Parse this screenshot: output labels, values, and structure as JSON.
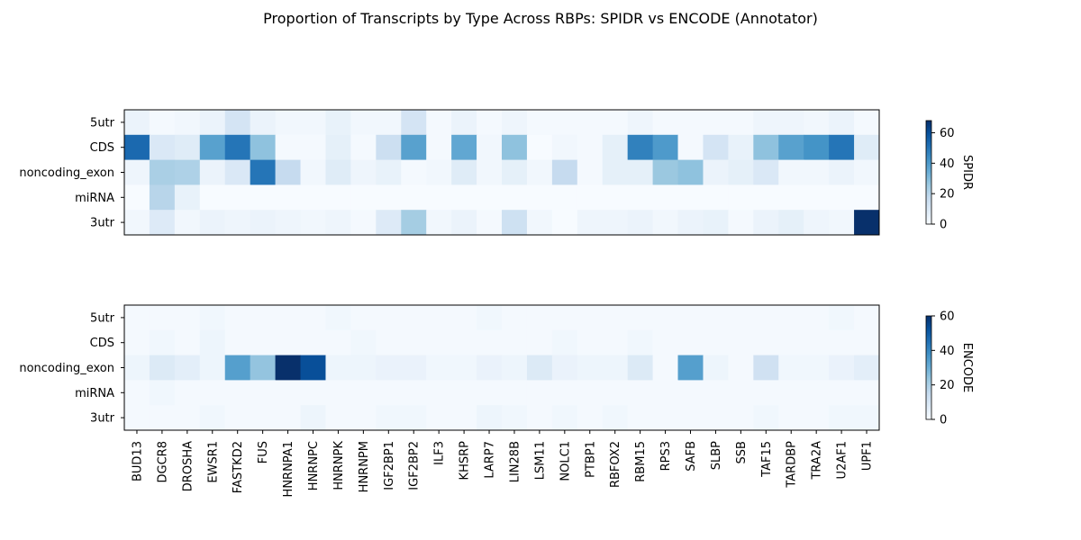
{
  "chart_data": {
    "type": "heatmap",
    "title": "Proportion of Transcripts by Type Across RBPs: SPIDR vs ENCODE (Annotator)",
    "columns": [
      "BUD13",
      "DGCR8",
      "DROSHA",
      "EWSR1",
      "FASTKD2",
      "FUS",
      "HNRNPA1",
      "HNRNPC",
      "HNRNPK",
      "HNRNPM",
      "IGF2BP1",
      "IGF2BP2",
      "ILF3",
      "KHSRP",
      "LARP7",
      "LIN28B",
      "LSM11",
      "NOLC1",
      "PTBP1",
      "RBFOX2",
      "RBM15",
      "RPS3",
      "SAFB",
      "SLBP",
      "SSB",
      "TAF15",
      "TARDBP",
      "TRA2A",
      "U2AF1",
      "UPF1"
    ],
    "rows": [
      "5utr",
      "CDS",
      "noncoding_exon",
      "miRNA",
      "3utr"
    ],
    "colormap": "Blues",
    "panels": [
      {
        "colorbar_label": "SPIDR",
        "vmin": 0,
        "vmax": 68,
        "colorbar_ticks": [
          0,
          20,
          40,
          60
        ],
        "values": [
          [
            4,
            1,
            2,
            4,
            12,
            4,
            2,
            2,
            5,
            2,
            2,
            12,
            1,
            4,
            1,
            3,
            1,
            1,
            1,
            1,
            3,
            1,
            1,
            1,
            1,
            3,
            3,
            2,
            4,
            1
          ],
          [
            53,
            10,
            8,
            38,
            50,
            28,
            1,
            1,
            6,
            1,
            15,
            38,
            1,
            36,
            2,
            28,
            0,
            2,
            1,
            6,
            47,
            40,
            1,
            12,
            5,
            28,
            38,
            42,
            50,
            8
          ],
          [
            3,
            23,
            22,
            4,
            10,
            50,
            17,
            2,
            8,
            3,
            5,
            1,
            2,
            8,
            2,
            6,
            2,
            17,
            1,
            6,
            6,
            26,
            28,
            4,
            6,
            10,
            2,
            2,
            4,
            2
          ],
          [
            0,
            20,
            5,
            0,
            0,
            0,
            0,
            0,
            0,
            0,
            0,
            0,
            0,
            0,
            0,
            0,
            0,
            0,
            0,
            0,
            0,
            0,
            0,
            0,
            0,
            0,
            0,
            0,
            0,
            0
          ],
          [
            2,
            9,
            2,
            4,
            3,
            4,
            3,
            2,
            3,
            1,
            9,
            24,
            2,
            4,
            1,
            14,
            2,
            0,
            3,
            3,
            4,
            2,
            4,
            5,
            1,
            4,
            6,
            3,
            2,
            68
          ]
        ]
      },
      {
        "colorbar_label": "ENCODE",
        "vmin": 0,
        "vmax": 60,
        "colorbar_ticks": [
          0,
          20,
          40,
          60
        ],
        "values": [
          [
            1,
            1,
            1,
            2,
            1,
            1,
            1,
            1,
            2,
            1,
            1,
            1,
            1,
            1,
            2,
            1,
            1,
            1,
            1,
            1,
            1,
            1,
            1,
            1,
            1,
            1,
            1,
            1,
            2,
            1
          ],
          [
            1,
            2,
            1,
            3,
            1,
            1,
            1,
            1,
            1,
            2,
            1,
            1,
            1,
            1,
            1,
            1,
            1,
            2,
            1,
            1,
            2,
            1,
            1,
            1,
            1,
            1,
            1,
            1,
            1,
            1
          ],
          [
            3,
            8,
            6,
            3,
            34,
            24,
            60,
            53,
            3,
            3,
            4,
            4,
            2,
            2,
            4,
            3,
            8,
            4,
            3,
            3,
            8,
            1,
            34,
            3,
            1,
            12,
            2,
            2,
            4,
            6
          ],
          [
            1,
            2,
            1,
            1,
            1,
            1,
            1,
            1,
            1,
            1,
            1,
            1,
            1,
            1,
            1,
            1,
            1,
            1,
            1,
            1,
            1,
            1,
            1,
            1,
            1,
            1,
            1,
            1,
            1,
            1
          ],
          [
            1,
            1,
            1,
            2,
            1,
            1,
            1,
            3,
            1,
            1,
            2,
            2,
            1,
            1,
            3,
            2,
            1,
            2,
            1,
            2,
            1,
            1,
            1,
            1,
            1,
            2,
            1,
            1,
            2,
            2
          ]
        ]
      }
    ]
  }
}
